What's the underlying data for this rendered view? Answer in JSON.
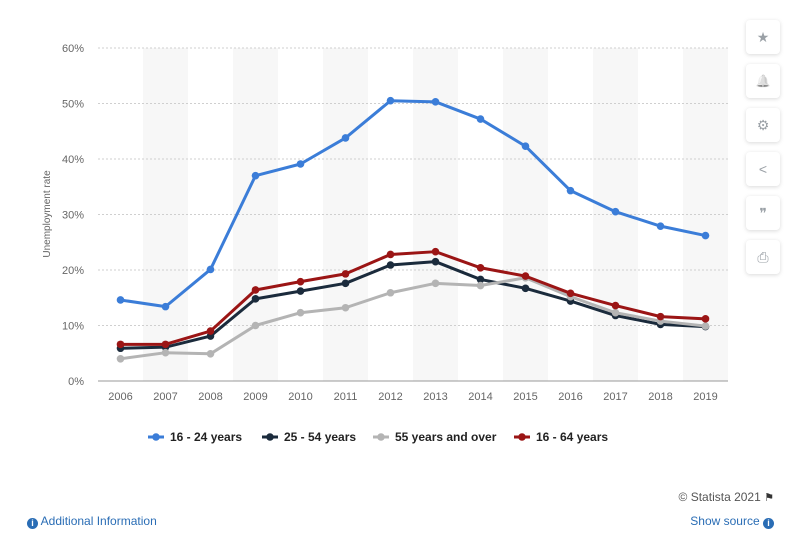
{
  "chart_data": {
    "type": "line",
    "title": "",
    "xlabel": "",
    "ylabel": "Unemployment rate",
    "ylim": [
      0,
      60
    ],
    "yticks": [
      "0%",
      "10%",
      "20%",
      "30%",
      "40%",
      "50%",
      "60%"
    ],
    "grid": true,
    "legend_position": "bottom",
    "categories": [
      "2006",
      "2007",
      "2008",
      "2009",
      "2010",
      "2011",
      "2012",
      "2013",
      "2014",
      "2015",
      "2016",
      "2017",
      "2018",
      "2019"
    ],
    "series": [
      {
        "name": "16 - 24 years",
        "color": "#3b7dd8",
        "values": [
          14.6,
          13.4,
          20.1,
          37.0,
          39.1,
          43.8,
          50.5,
          50.3,
          47.2,
          42.3,
          34.3,
          30.5,
          27.9,
          26.2
        ]
      },
      {
        "name": "25 - 54 years",
        "color": "#1b2b3c",
        "values": [
          5.9,
          6.1,
          8.1,
          14.8,
          16.2,
          17.6,
          20.9,
          21.5,
          18.3,
          16.7,
          14.4,
          11.8,
          10.2,
          9.8
        ]
      },
      {
        "name": "55 years and over",
        "color": "#b4b4b4",
        "values": [
          4.0,
          5.1,
          4.9,
          10.0,
          12.3,
          13.2,
          15.9,
          17.6,
          17.2,
          18.6,
          15.2,
          12.3,
          10.8,
          9.9
        ]
      },
      {
        "name": "16 - 64 years",
        "color": "#9b1515",
        "values": [
          6.6,
          6.6,
          9.0,
          16.4,
          17.9,
          19.3,
          22.8,
          23.3,
          20.4,
          18.9,
          15.8,
          13.6,
          11.6,
          11.2
        ]
      }
    ]
  },
  "sidebar": {
    "star_icon": "★",
    "bell_icon": "🔔",
    "gear_icon": "⚙",
    "share_icon": "<",
    "quote_icon": "❞",
    "print_icon": "⎙"
  },
  "footer": {
    "additional_info": "Additional Information",
    "copyright": "© Statista 2021",
    "show_source": "Show source",
    "info_glyph": "i"
  }
}
